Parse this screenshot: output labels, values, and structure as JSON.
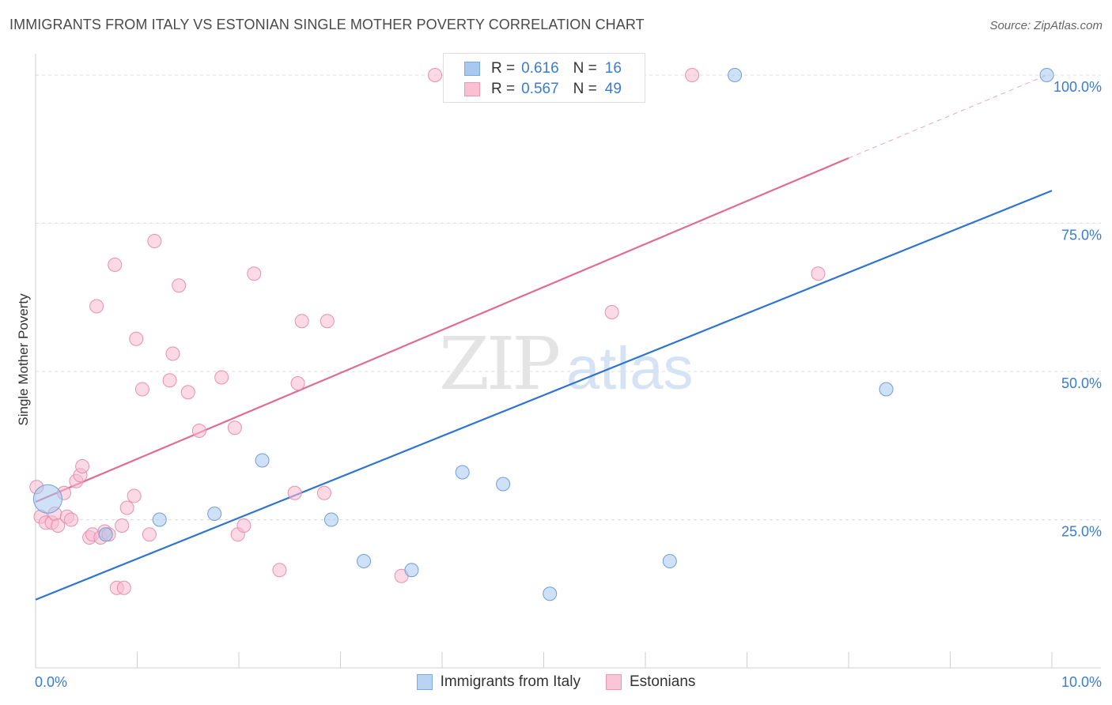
{
  "title": "IMMIGRANTS FROM ITALY VS ESTONIAN SINGLE MOTHER POVERTY CORRELATION CHART",
  "source": "Source: ZipAtlas.com",
  "watermark": {
    "zip": "ZIP",
    "atlas": "atlas"
  },
  "legend_stats": [
    {
      "r_label": "R =",
      "r_value": "0.616",
      "n_label": "N =",
      "n_value": "16",
      "color": "#a8c8f0",
      "border": "#7aaae0"
    },
    {
      "r_label": "R =",
      "r_value": "0.567",
      "n_label": "N =",
      "n_value": "49",
      "color": "#f9c0d2",
      "border": "#ee98b5"
    }
  ],
  "colors": {
    "blue_point": "#a8c8f0",
    "blue_line": "#2f74d0",
    "pink_point": "#f7bcd0",
    "pink_line": "#e06b95",
    "tick_text": "#3a7bd5"
  },
  "chart_data": {
    "type": "scatter",
    "xlabel": "",
    "ylabel": "Single Mother Poverty",
    "xlim": [
      0,
      10
    ],
    "ylim": [
      0,
      102
    ],
    "x_tick_labels": [
      "0.0%",
      "10.0%"
    ],
    "y_ticks": [
      25,
      50,
      75,
      100
    ],
    "y_tick_labels": [
      "25.0%",
      "50.0%",
      "75.0%",
      "100.0%"
    ],
    "grid": true,
    "legend": "bottom-center",
    "series": [
      {
        "name": "Immigrants from Italy",
        "points": [
          {
            "x": 0.12,
            "y": 28.5,
            "big": true
          },
          {
            "x": 0.69,
            "y": 22.5
          },
          {
            "x": 1.22,
            "y": 25.0
          },
          {
            "x": 1.76,
            "y": 26.0
          },
          {
            "x": 2.23,
            "y": 35.0
          },
          {
            "x": 2.91,
            "y": 25.0
          },
          {
            "x": 3.23,
            "y": 18.0
          },
          {
            "x": 3.7,
            "y": 16.5
          },
          {
            "x": 4.2,
            "y": 33.0
          },
          {
            "x": 4.6,
            "y": 31.0
          },
          {
            "x": 5.06,
            "y": 12.5
          },
          {
            "x": 5.51,
            "y": 100.0
          },
          {
            "x": 6.24,
            "y": 18.0
          },
          {
            "x": 6.88,
            "y": 100.0
          },
          {
            "x": 8.37,
            "y": 47.0
          },
          {
            "x": 9.95,
            "y": 100.0
          }
        ],
        "trend": {
          "x0": 0.0,
          "y0": 11.5,
          "x1": 10.0,
          "y1": 80.5
        }
      },
      {
        "name": "Estonians",
        "points": [
          {
            "x": 0.01,
            "y": 30.5
          },
          {
            "x": 0.05,
            "y": 25.5
          },
          {
            "x": 0.1,
            "y": 24.5
          },
          {
            "x": 0.16,
            "y": 24.5
          },
          {
            "x": 0.19,
            "y": 26.0
          },
          {
            "x": 0.22,
            "y": 24.0
          },
          {
            "x": 0.28,
            "y": 29.5
          },
          {
            "x": 0.31,
            "y": 25.5
          },
          {
            "x": 0.35,
            "y": 25.0
          },
          {
            "x": 0.4,
            "y": 31.5
          },
          {
            "x": 0.44,
            "y": 32.5
          },
          {
            "x": 0.46,
            "y": 34.0
          },
          {
            "x": 0.53,
            "y": 22.0
          },
          {
            "x": 0.56,
            "y": 22.5
          },
          {
            "x": 0.6,
            "y": 61.0
          },
          {
            "x": 0.64,
            "y": 22.0
          },
          {
            "x": 0.68,
            "y": 23.0
          },
          {
            "x": 0.72,
            "y": 22.5
          },
          {
            "x": 0.78,
            "y": 68.0
          },
          {
            "x": 0.8,
            "y": 13.5
          },
          {
            "x": 0.85,
            "y": 24.0
          },
          {
            "x": 0.87,
            "y": 13.5
          },
          {
            "x": 0.9,
            "y": 27.0
          },
          {
            "x": 0.97,
            "y": 29.0
          },
          {
            "x": 0.99,
            "y": 55.5
          },
          {
            "x": 1.05,
            "y": 47.0
          },
          {
            "x": 1.12,
            "y": 22.5
          },
          {
            "x": 1.17,
            "y": 72.0
          },
          {
            "x": 1.32,
            "y": 48.5
          },
          {
            "x": 1.35,
            "y": 53.0
          },
          {
            "x": 1.41,
            "y": 64.5
          },
          {
            "x": 1.5,
            "y": 46.5
          },
          {
            "x": 1.61,
            "y": 40.0
          },
          {
            "x": 1.83,
            "y": 49.0
          },
          {
            "x": 1.96,
            "y": 40.5
          },
          {
            "x": 1.99,
            "y": 22.5
          },
          {
            "x": 2.05,
            "y": 24.0
          },
          {
            "x": 2.15,
            "y": 66.5
          },
          {
            "x": 2.4,
            "y": 16.5
          },
          {
            "x": 2.55,
            "y": 29.5
          },
          {
            "x": 2.58,
            "y": 48.0
          },
          {
            "x": 2.62,
            "y": 58.5
          },
          {
            "x": 2.84,
            "y": 29.5
          },
          {
            "x": 2.87,
            "y": 58.5
          },
          {
            "x": 3.6,
            "y": 15.5
          },
          {
            "x": 3.93,
            "y": 100.0
          },
          {
            "x": 5.67,
            "y": 60.0
          },
          {
            "x": 6.46,
            "y": 100.0
          },
          {
            "x": 7.7,
            "y": 66.5
          }
        ],
        "trend": {
          "x0": 0.0,
          "y0": 28.0,
          "x1": 8.0,
          "y1": 86.0,
          "dash_to_x": 9.95,
          "dash_to_y": 100.0
        }
      }
    ]
  }
}
